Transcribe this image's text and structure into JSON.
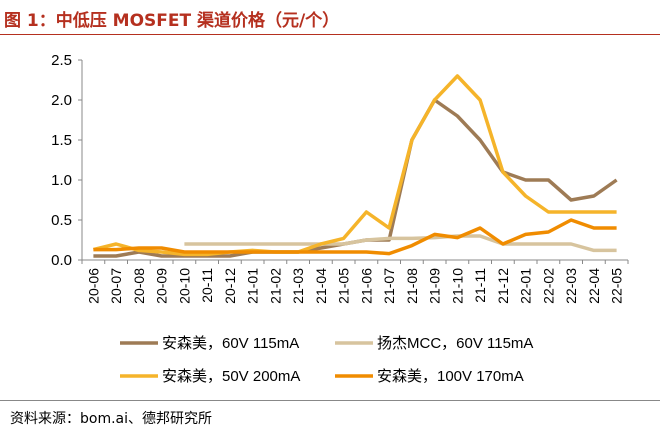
{
  "title": "图 1：中低压 MOSFET 渠道价格（元/个）",
  "source": "资料来源：bom.ai、德邦研究所",
  "chart_data": {
    "type": "line",
    "title": "图 1：中低压 MOSFET 渠道价格（元/个）",
    "xlabel": "",
    "ylabel": "",
    "ylim": [
      0,
      2.5
    ],
    "yticks": [
      "0.0",
      "0.5",
      "1.0",
      "1.5",
      "2.0",
      "2.5"
    ],
    "grid": false,
    "legend_position": "bottom",
    "categories": [
      "20-06",
      "20-07",
      "20-08",
      "20-09",
      "20-10",
      "20-11",
      "20-12",
      "21-01",
      "21-02",
      "21-03",
      "21-04",
      "21-05",
      "21-06",
      "21-07",
      "21-08",
      "21-09",
      "21-10",
      "21-11",
      "21-12",
      "22-01",
      "22-02",
      "22-03",
      "22-04",
      "22-05"
    ],
    "series": [
      {
        "name": "安森美，60V 115mA",
        "color": "#9e7b55",
        "values": [
          0.05,
          0.05,
          0.1,
          0.05,
          0.05,
          0.05,
          0.05,
          0.1,
          0.1,
          0.1,
          0.15,
          0.2,
          0.25,
          0.25,
          1.5,
          2.0,
          1.8,
          1.5,
          1.1,
          1.0,
          1.0,
          0.75,
          0.8,
          1.0
        ]
      },
      {
        "name": "扬杰MCC，60V 115mA",
        "color": "#d7c49e",
        "values": [
          null,
          null,
          null,
          null,
          0.2,
          0.2,
          0.2,
          0.2,
          0.2,
          0.2,
          0.2,
          0.2,
          0.25,
          0.27,
          0.27,
          0.28,
          0.3,
          0.3,
          0.2,
          0.2,
          0.2,
          0.2,
          0.12,
          0.12
        ]
      },
      {
        "name": "安森美，50V 200mA",
        "color": "#f5b42a",
        "values": [
          0.13,
          0.2,
          0.12,
          0.1,
          0.07,
          0.07,
          0.1,
          0.12,
          0.1,
          0.1,
          0.2,
          0.27,
          0.6,
          0.4,
          1.5,
          2.0,
          2.3,
          2.0,
          1.1,
          0.8,
          0.6,
          0.6,
          0.6,
          0.6
        ]
      },
      {
        "name": "安森美，100V 170mA",
        "color": "#f08c00",
        "values": [
          0.13,
          0.13,
          0.15,
          0.15,
          0.1,
          0.1,
          0.1,
          0.1,
          0.1,
          0.1,
          0.1,
          0.1,
          0.1,
          0.08,
          0.18,
          0.32,
          0.28,
          0.4,
          0.2,
          0.32,
          0.35,
          0.5,
          0.4,
          0.4
        ]
      }
    ]
  }
}
